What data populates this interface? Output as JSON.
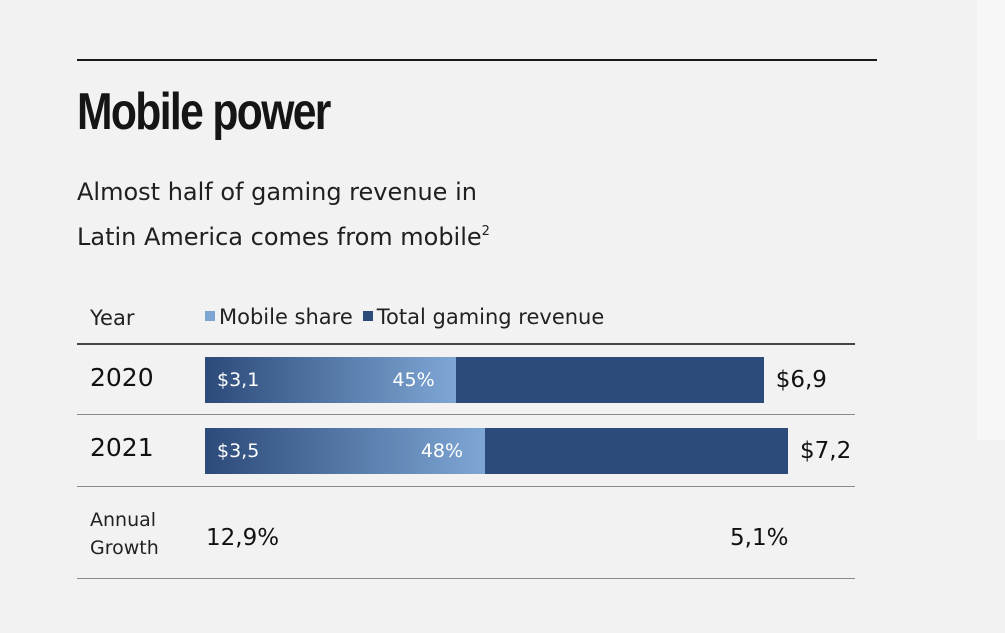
{
  "chart_data": {
    "type": "bar",
    "title": "Mobile power",
    "subtitle_line1": "Almost half of gaming revenue in",
    "subtitle_line2": "Latin America comes from mobile",
    "subtitle_footnote": "2",
    "header_label": "Year",
    "legend": [
      {
        "name": "Mobile share",
        "color": "#7ea6d4"
      },
      {
        "name": "Total gaming revenue",
        "color": "#2c4a7a"
      }
    ],
    "categories": [
      "2020",
      "2021"
    ],
    "series": [
      {
        "name": "Mobile share",
        "values": [
          3.1,
          3.5
        ],
        "value_labels": [
          "$3,1",
          "$3,5"
        ],
        "percent_labels": [
          "45%",
          "48%"
        ],
        "percent": [
          45,
          48
        ]
      },
      {
        "name": "Total gaming revenue",
        "values": [
          6.9,
          7.2
        ],
        "value_labels": [
          "$6,9",
          "$7,2"
        ]
      }
    ],
    "growth": {
      "label_line1": "Annual",
      "label_line2": "Growth",
      "mobile": "12,9%",
      "total": "5,1%"
    },
    "xlim": [
      0,
      7.2
    ]
  }
}
